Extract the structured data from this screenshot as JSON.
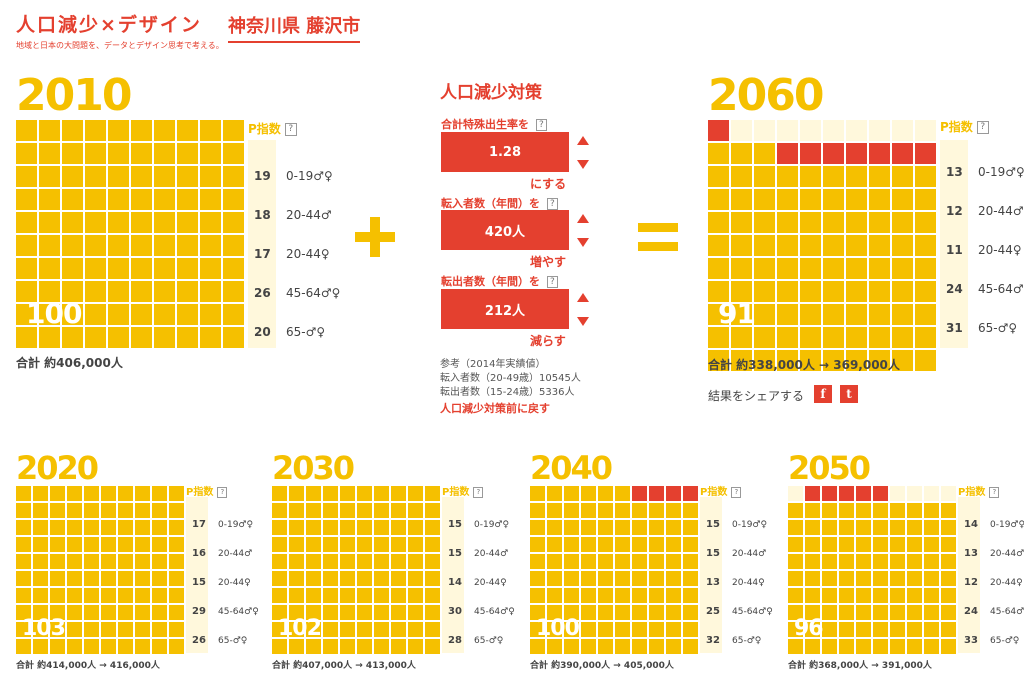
{
  "header": {
    "title": "人口減少×デザイン",
    "tagline": "地域と日本の大問題を、データとデザイン思考で考える。",
    "city": "神奈川県 藤沢市"
  },
  "pidx_label": "P指数",
  "help_mark": "?",
  "operators": {
    "plus": "+",
    "equals": "="
  },
  "controls": {
    "title": "人口減少対策",
    "fertility": {
      "label": "合計特殊出生率を",
      "value": "1.28",
      "suffix": "にする"
    },
    "move_in": {
      "label": "転入者数（年間）を",
      "value": "420人",
      "suffix": "増やす"
    },
    "move_out": {
      "label": "転出者数（年間）を",
      "value": "212人",
      "suffix": "減らす"
    },
    "reference": [
      "参考（2014年実績値）",
      "転入者数（20-49歳）10545人",
      "転出者数（15-24歳）5336人"
    ],
    "reset": "人口減少対策前に戻す"
  },
  "share": {
    "label": "結果をシェアする",
    "facebook": "f",
    "twitter": "t"
  },
  "panels": {
    "y2010": {
      "year": "2010",
      "value": "100",
      "total": "合計 約406,000人",
      "index": [
        {
          "n": "19",
          "label": "0-19♂♀"
        },
        {
          "n": "18",
          "label": "20-44♂"
        },
        {
          "n": "17",
          "label": "20-44♀"
        },
        {
          "n": "26",
          "label": "45-64♂♀"
        },
        {
          "n": "20",
          "label": "65-♂♀"
        }
      ]
    },
    "y2060": {
      "year": "2060",
      "value": "91",
      "total": "合計 約338,000人 → 369,000人",
      "index": [
        {
          "n": "13",
          "label": "0-19♂♀"
        },
        {
          "n": "12",
          "label": "20-44♂"
        },
        {
          "n": "11",
          "label": "20-44♀"
        },
        {
          "n": "24",
          "label": "45-64♂♀"
        },
        {
          "n": "31",
          "label": "65-♂♀"
        }
      ]
    },
    "y2020": {
      "year": "2020",
      "value": "103",
      "total": "合計 約414,000人 → 416,000人",
      "index": [
        {
          "n": "17",
          "label": "0-19♂♀"
        },
        {
          "n": "16",
          "label": "20-44♂"
        },
        {
          "n": "15",
          "label": "20-44♀"
        },
        {
          "n": "29",
          "label": "45-64♂♀"
        },
        {
          "n": "26",
          "label": "65-♂♀"
        }
      ]
    },
    "y2030": {
      "year": "2030",
      "value": "102",
      "total": "合計 約407,000人 → 413,000人",
      "index": [
        {
          "n": "15",
          "label": "0-19♂♀"
        },
        {
          "n": "15",
          "label": "20-44♂"
        },
        {
          "n": "14",
          "label": "20-44♀"
        },
        {
          "n": "30",
          "label": "45-64♂♀"
        },
        {
          "n": "28",
          "label": "65-♂♀"
        }
      ]
    },
    "y2040": {
      "year": "2040",
      "value": "100",
      "total": "合計 約390,000人 → 405,000人",
      "index": [
        {
          "n": "15",
          "label": "0-19♂♀"
        },
        {
          "n": "15",
          "label": "20-44♂"
        },
        {
          "n": "13",
          "label": "20-44♀"
        },
        {
          "n": "25",
          "label": "45-64♂♀"
        },
        {
          "n": "32",
          "label": "65-♂♀"
        }
      ]
    },
    "y2050": {
      "year": "2050",
      "value": "96",
      "total": "合計 約368,000人 → 391,000人",
      "index": [
        {
          "n": "14",
          "label": "0-19♂♀"
        },
        {
          "n": "13",
          "label": "20-44♂"
        },
        {
          "n": "12",
          "label": "20-44♀"
        },
        {
          "n": "24",
          "label": "45-64♂♀"
        },
        {
          "n": "33",
          "label": "65-♂♀"
        }
      ]
    }
  },
  "colors": {
    "accent": "#e4402f",
    "yellow": "#f5c000",
    "pale": "#fff8dc"
  }
}
